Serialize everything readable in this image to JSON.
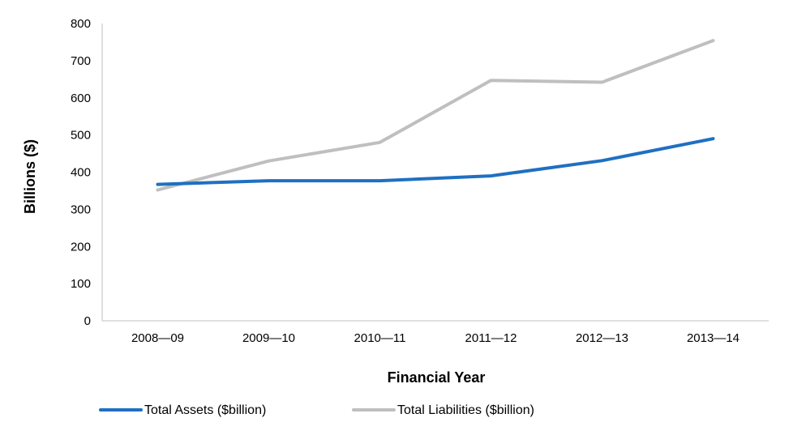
{
  "chart_data": {
    "type": "line",
    "title": "",
    "xlabel": "Financial Year",
    "ylabel": "Billions ($)",
    "categories": [
      "2008—09",
      "2009—10",
      "2010—11",
      "2011—12",
      "2012—13",
      "2013—14"
    ],
    "ylim": [
      0,
      800
    ],
    "yticks": [
      "0",
      "100",
      "200",
      "300",
      "400",
      "500",
      "600",
      "700",
      "800"
    ],
    "grid": false,
    "legend_position": "bottom",
    "series": [
      {
        "name": "Total Assets ($billion)",
        "color": "#1f70c1",
        "values": [
          367,
          377,
          377,
          390,
          431,
          490
        ]
      },
      {
        "name": "Total Liabilities ($billion)",
        "color": "#bfbfbf",
        "values": [
          352,
          430,
          480,
          647,
          642,
          754
        ]
      }
    ]
  }
}
